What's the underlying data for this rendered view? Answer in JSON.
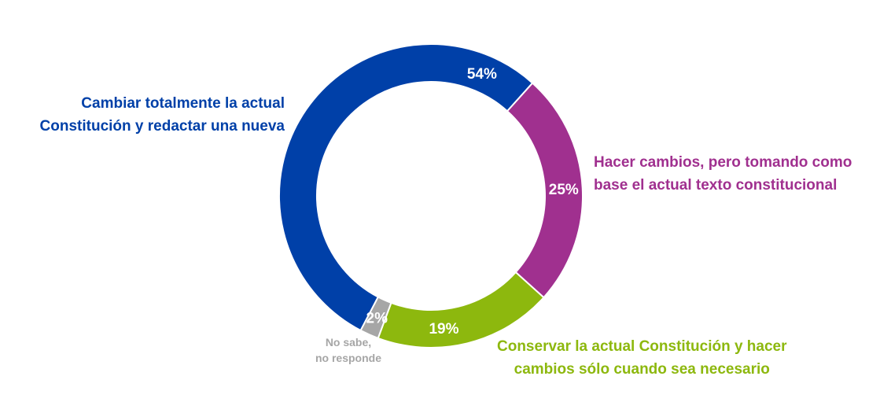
{
  "chart_data": {
    "type": "pie",
    "donut": true,
    "categories": [
      "Cambiar totalmente la actual Constitución y redactar una nueva",
      "Hacer cambios, pero tomando como base el actual texto constitucional",
      "Conservar la actual Constitución y hacer cambios sólo cuando sea necesario",
      "No sabe, no responde"
    ],
    "values": [
      54,
      25,
      19,
      2
    ],
    "value_labels": [
      "54%",
      "25%",
      "19%",
      "2%"
    ],
    "colors": [
      "#0040A8",
      "#A0308F",
      "#8DB80E",
      "#A6A6A6"
    ]
  },
  "labels": {
    "s54": {
      "line1": "Cambiar totalmente la actual",
      "line2": "Constitución y redactar una nueva"
    },
    "s25": {
      "line1": "Hacer cambios, pero tomando como",
      "line2": "base el actual texto constitucional"
    },
    "s19": {
      "line1": "Conservar la actual Constitución y hacer",
      "line2": "cambios sólo cuando sea necesario"
    },
    "s2": {
      "line1": "No sabe,",
      "line2": "no responde"
    }
  }
}
